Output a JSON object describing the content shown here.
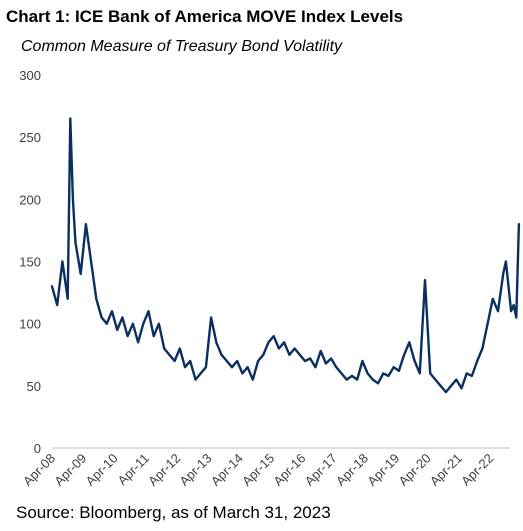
{
  "chart_data": {
    "type": "line",
    "title": "Chart 1: ICE Bank of America MOVE Index Levels",
    "subtitle": "Common Measure of Treasury Bond Volatility",
    "source": "Source: Bloomberg, as of March 31, 2023",
    "xlabel": "",
    "ylabel": "",
    "ylim": [
      0,
      300
    ],
    "y_ticks": [
      0,
      50,
      100,
      150,
      200,
      250,
      300
    ],
    "x_tick_labels": [
      "Apr-08",
      "Apr-09",
      "Apr-10",
      "Apr-11",
      "Apr-12",
      "Apr-13",
      "Apr-14",
      "Apr-15",
      "Apr-16",
      "Apr-17",
      "Apr-18",
      "Apr-19",
      "Apr-20",
      "Apr-21",
      "Apr-22"
    ],
    "grid": false,
    "legend": "none",
    "line_color": "#0b2f5e",
    "series": [
      {
        "x": [
          "2008-04",
          "2008-06",
          "2008-08",
          "2008-10",
          "2008-11",
          "2008-12",
          "2009-01",
          "2009-03",
          "2009-05",
          "2009-07",
          "2009-09",
          "2009-11",
          "2010-01",
          "2010-03",
          "2010-05",
          "2010-07",
          "2010-09",
          "2010-11",
          "2011-01",
          "2011-03",
          "2011-05",
          "2011-07",
          "2011-09",
          "2011-11",
          "2012-01",
          "2012-03",
          "2012-05",
          "2012-07",
          "2012-09",
          "2012-11",
          "2013-01",
          "2013-03",
          "2013-05",
          "2013-06",
          "2013-07",
          "2013-09",
          "2013-11",
          "2014-01",
          "2014-03",
          "2014-05",
          "2014-07",
          "2014-09",
          "2014-11",
          "2015-01",
          "2015-03",
          "2015-05",
          "2015-07",
          "2015-09",
          "2015-11",
          "2016-01",
          "2016-03",
          "2016-05",
          "2016-07",
          "2016-09",
          "2016-11",
          "2017-01",
          "2017-03",
          "2017-05",
          "2017-07",
          "2017-09",
          "2017-11",
          "2018-01",
          "2018-03",
          "2018-05",
          "2018-07",
          "2018-09",
          "2018-11",
          "2019-01",
          "2019-03",
          "2019-05",
          "2019-07",
          "2019-09",
          "2019-11",
          "2020-01",
          "2020-03",
          "2020-05",
          "2020-07",
          "2020-09",
          "2020-11",
          "2021-01",
          "2021-03",
          "2021-05",
          "2021-07",
          "2021-09",
          "2021-11",
          "2022-01",
          "2022-03",
          "2022-05",
          "2022-07",
          "2022-09",
          "2022-10",
          "2022-11",
          "2022-12",
          "2023-01",
          "2023-02",
          "2023-03"
        ],
        "values": [
          130,
          115,
          150,
          120,
          265,
          200,
          165,
          140,
          180,
          150,
          120,
          105,
          100,
          110,
          95,
          105,
          90,
          100,
          85,
          100,
          110,
          90,
          100,
          80,
          75,
          70,
          80,
          65,
          70,
          55,
          60,
          65,
          105,
          95,
          85,
          75,
          70,
          65,
          70,
          60,
          65,
          55,
          70,
          75,
          85,
          90,
          80,
          85,
          75,
          80,
          75,
          70,
          72,
          65,
          78,
          68,
          72,
          65,
          60,
          55,
          58,
          55,
          70,
          60,
          55,
          52,
          60,
          58,
          65,
          62,
          75,
          85,
          70,
          60,
          135,
          60,
          55,
          50,
          45,
          50,
          55,
          48,
          60,
          58,
          70,
          80,
          100,
          120,
          110,
          140,
          150,
          130,
          110,
          115,
          105,
          180
        ]
      }
    ]
  }
}
